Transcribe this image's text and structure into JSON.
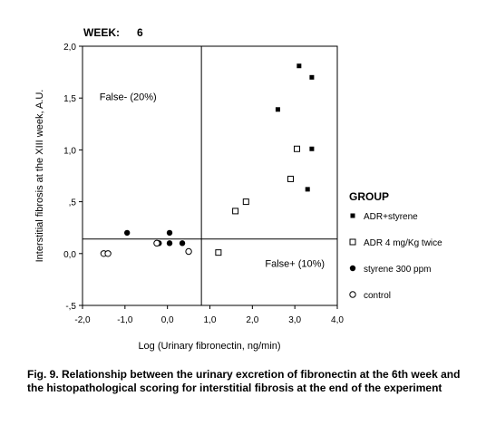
{
  "chart_data": {
    "type": "scatter",
    "title": "WEEK:",
    "title_value": "6",
    "xlabel": "Log (Urinary fibronectin, ng/min)",
    "ylabel": "Interstitial fibrosis at the XIII week, A.U.",
    "xlim": [
      -2.0,
      4.0
    ],
    "ylim": [
      -0.5,
      2.0
    ],
    "x_ticks": [
      -2.0,
      -1.0,
      0.0,
      1.0,
      2.0,
      3.0,
      4.0
    ],
    "x_tick_labels": [
      "-2,0",
      "-1,0",
      "0,0",
      "1,0",
      "2,0",
      "3,0",
      "4,0"
    ],
    "y_ticks": [
      -0.5,
      0.0,
      0.5,
      1.0,
      1.5,
      2.0
    ],
    "y_tick_labels": [
      "-,5",
      "0,0",
      ",5",
      "1,0",
      "1,5",
      "2,0"
    ],
    "grid": false,
    "reference_lines": {
      "x": 0.8,
      "y": 0.14
    },
    "annotations": [
      {
        "text": "False- (20%)",
        "x": -1.6,
        "y": 1.48
      },
      {
        "text": "False+ (10%)",
        "x": 2.3,
        "y": -0.13
      }
    ],
    "legend_title": "GROUP",
    "legend_position": "right",
    "series": [
      {
        "name": "ADR+styrene",
        "marker": "filled-square",
        "points": [
          [
            3.1,
            1.81
          ],
          [
            3.4,
            1.7
          ],
          [
            2.6,
            1.39
          ],
          [
            3.4,
            1.01
          ],
          [
            3.3,
            0.62
          ]
        ]
      },
      {
        "name": "ADR 4 mg/Kg twice",
        "marker": "open-square",
        "points": [
          [
            3.05,
            1.01
          ],
          [
            2.9,
            0.72
          ],
          [
            1.85,
            0.5
          ],
          [
            1.6,
            0.41
          ],
          [
            1.2,
            0.01
          ]
        ]
      },
      {
        "name": "styrene 300 ppm",
        "marker": "filled-circle",
        "points": [
          [
            -0.95,
            0.2
          ],
          [
            0.05,
            0.2
          ],
          [
            -0.2,
            0.1
          ],
          [
            0.05,
            0.1
          ],
          [
            0.35,
            0.1
          ]
        ]
      },
      {
        "name": "control",
        "marker": "open-circle",
        "points": [
          [
            -1.5,
            0.0
          ],
          [
            -1.4,
            0.0
          ],
          [
            -0.25,
            0.1
          ],
          [
            0.5,
            0.02
          ]
        ]
      }
    ]
  },
  "caption": "Fig. 9. Relationship between the urinary excretion of fibronectin at the 6th week and the histopathological scoring for interstitial fibrosis at the end of the experiment"
}
